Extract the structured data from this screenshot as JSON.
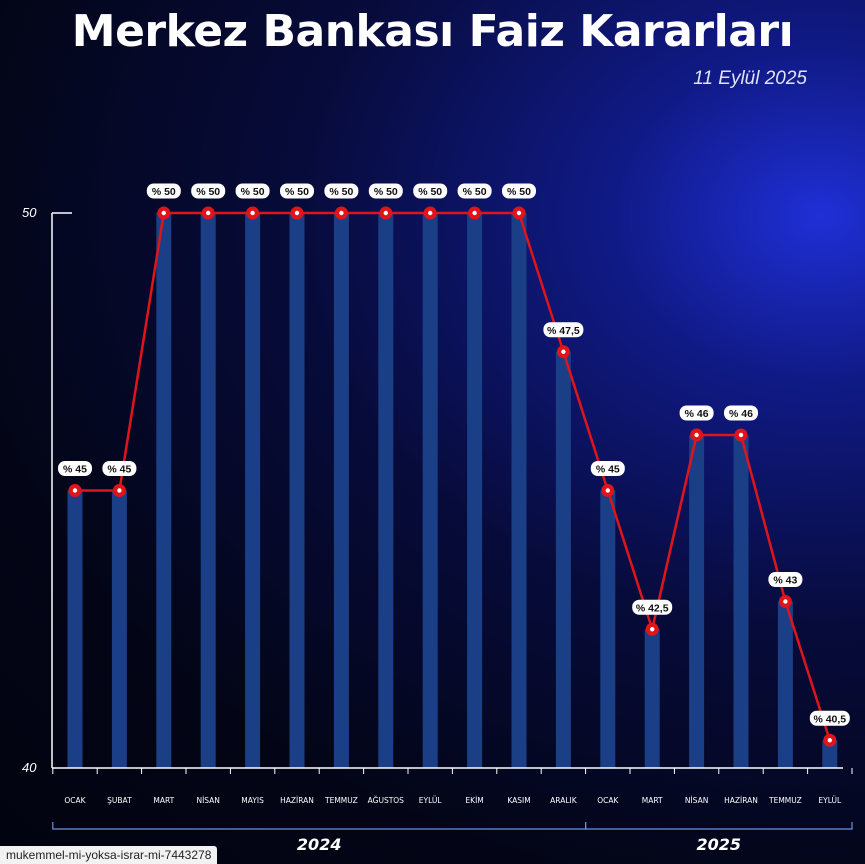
{
  "header": {
    "title": "Merkez Bankası Faiz Kararları",
    "date": "11 Eylül 2025"
  },
  "chart_data": {
    "type": "bar",
    "overlay": "line",
    "ylim": [
      40,
      50
    ],
    "yticks": [
      "50",
      "40"
    ],
    "categories": [
      "OCAK",
      "ŞUBAT",
      "MART",
      "NİSAN",
      "MAYIS",
      "HAZİRAN",
      "TEMMUZ",
      "AĞUSTOS",
      "EYLÜL",
      "EKİM",
      "KASIM",
      "ARALIK",
      "OCAK",
      "MART",
      "NİSAN",
      "HAZİRAN",
      "TEMMUZ",
      "EYLÜL"
    ],
    "values": [
      45,
      45,
      50,
      50,
      50,
      50,
      50,
      50,
      50,
      50,
      50,
      47.5,
      45,
      42.5,
      46,
      46,
      43,
      40.5
    ],
    "data_labels": [
      "% 45",
      "% 45",
      "% 50",
      "% 50",
      "% 50",
      "% 50",
      "% 50",
      "% 50",
      "% 50",
      "% 50",
      "% 50",
      "% 47,5",
      "% 45",
      "% 42,5",
      "% 46",
      "% 46",
      "% 43",
      "% 40,5"
    ],
    "groups": [
      {
        "label": "2024",
        "from": 0,
        "to": 11
      },
      {
        "label": "2025",
        "from": 12,
        "to": 17
      }
    ],
    "colors": {
      "bar": "#1b3f86",
      "line": "#e0141b",
      "label_bg": "#ffffff",
      "label_text": "#111111",
      "axis": "#ffffff"
    },
    "grid": false,
    "legend": "none"
  },
  "footer": {
    "url_text": "mukemmel-mi-yoksa-israr-mi-7443278"
  }
}
